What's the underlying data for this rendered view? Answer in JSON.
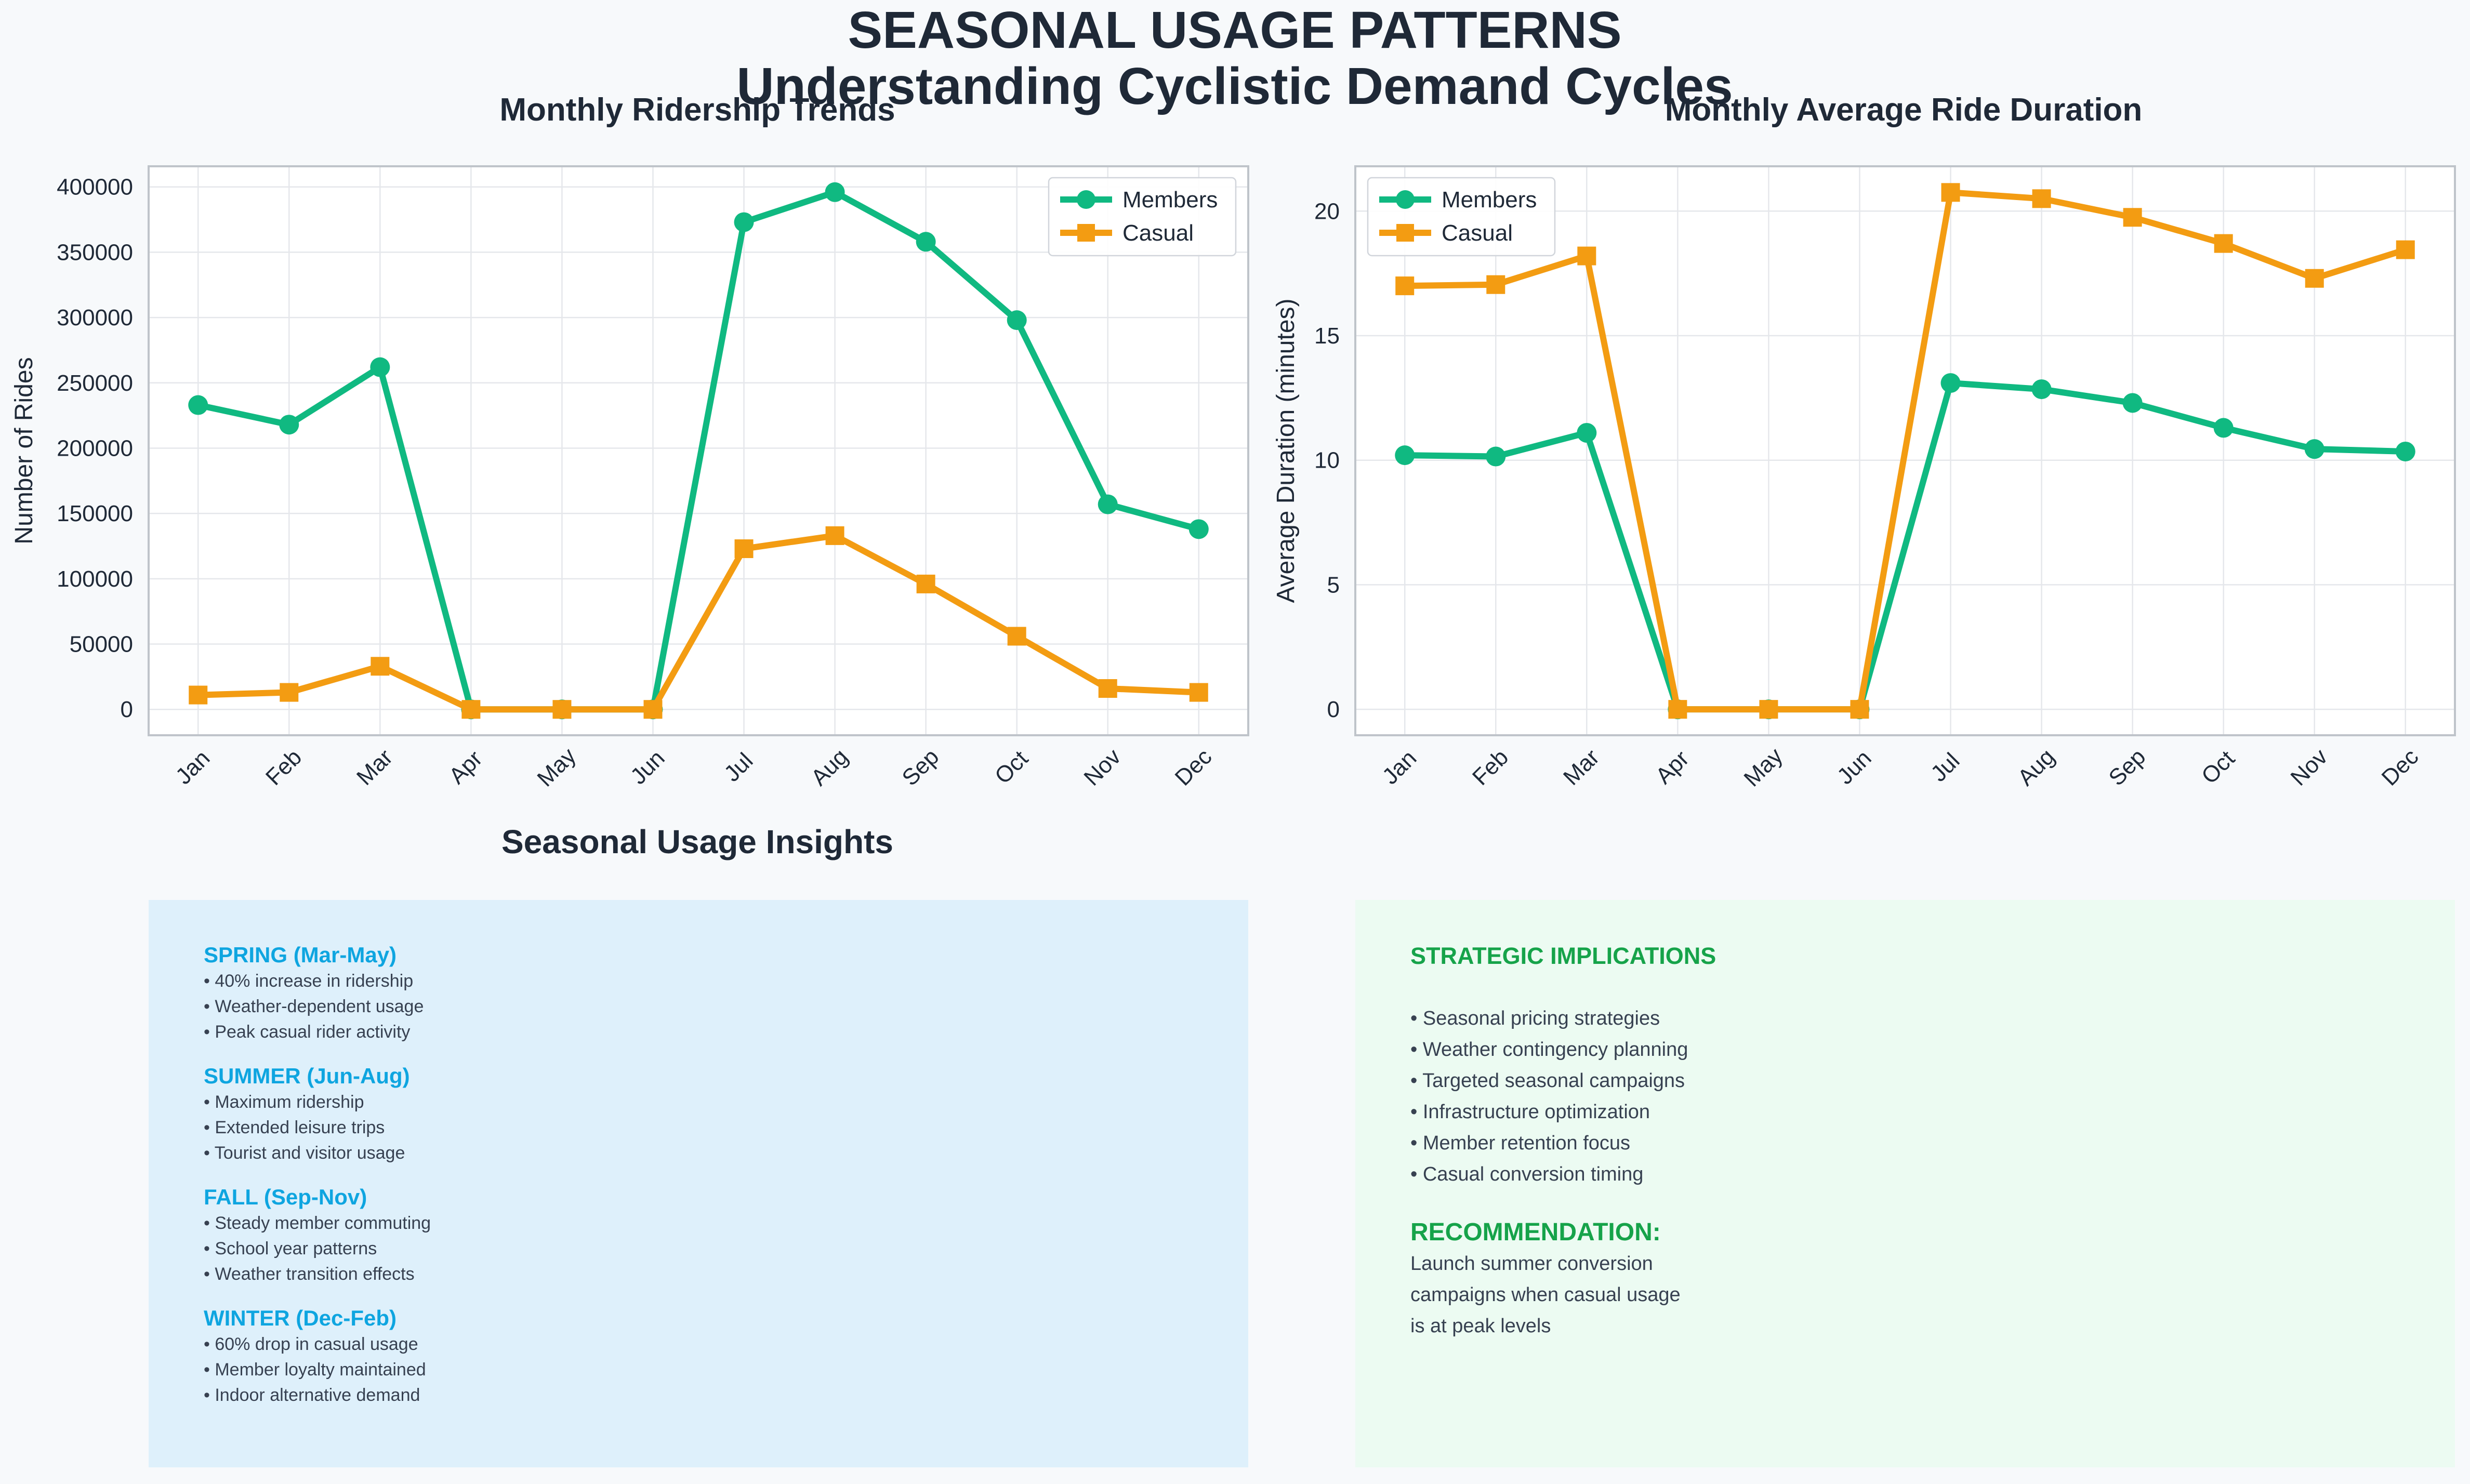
{
  "figure": {
    "title_line1": "SEASONAL USAGE PATTERNS",
    "title_line2": "Understanding Cyclistic Demand Cycles"
  },
  "colors": {
    "members": "#10b981",
    "casual": "#f39c12",
    "title": "#1f2937",
    "spring_summer_fall_winter_heading": "#0ea5e0",
    "strategy_heading": "#16a34a",
    "seasons_box_bg": "#def0fb",
    "strategy_box_bg": "#ecfbf2"
  },
  "chart_data": [
    {
      "type": "line",
      "title": "Monthly Ridership Trends",
      "xlabel": "",
      "ylabel": "Number of Rides",
      "categories": [
        "Jan",
        "Feb",
        "Mar",
        "Apr",
        "May",
        "Jun",
        "Jul",
        "Aug",
        "Sep",
        "Oct",
        "Nov",
        "Dec"
      ],
      "series": [
        {
          "name": "Members",
          "marker": "circle",
          "values": [
            233000,
            218000,
            262000,
            0,
            0,
            0,
            373000,
            396000,
            358000,
            298000,
            157000,
            138000
          ]
        },
        {
          "name": "Casual",
          "marker": "square",
          "values": [
            11000,
            13000,
            33000,
            0,
            0,
            0,
            123000,
            133000,
            96000,
            56000,
            16000,
            13000
          ]
        }
      ],
      "yticks": [
        0,
        50000,
        100000,
        150000,
        200000,
        250000,
        300000,
        350000,
        400000
      ],
      "ylim": [
        -19800,
        415800
      ],
      "grid": true,
      "legend": "top-right"
    },
    {
      "type": "line",
      "title": "Monthly Average Ride Duration",
      "xlabel": "",
      "ylabel": "Average Duration (minutes)",
      "categories": [
        "Jan",
        "Feb",
        "Mar",
        "Apr",
        "May",
        "Jun",
        "Jul",
        "Aug",
        "Sep",
        "Oct",
        "Nov",
        "Dec"
      ],
      "series": [
        {
          "name": "Members",
          "marker": "circle",
          "values": [
            10.2,
            10.15,
            11.1,
            0,
            0,
            0,
            13.1,
            12.85,
            12.3,
            11.3,
            10.45,
            10.35
          ]
        },
        {
          "name": "Casual",
          "marker": "square",
          "values": [
            17.0,
            17.05,
            18.2,
            0,
            0,
            0,
            20.75,
            20.5,
            19.75,
            18.7,
            17.3,
            18.45
          ]
        }
      ],
      "yticks": [
        0,
        5,
        10,
        15,
        20
      ],
      "ylim": [
        -1.04,
        21.8
      ],
      "grid": true,
      "legend": "top-left"
    }
  ],
  "insights": {
    "title": "Seasonal Usage Insights",
    "seasons": [
      {
        "title": "SPRING (Mar-May)",
        "bullets": [
          "• 40% increase in ridership",
          "• Weather-dependent usage",
          "• Peak casual rider activity"
        ]
      },
      {
        "title": "SUMMER (Jun-Aug)",
        "bullets": [
          "• Maximum ridership",
          "• Extended leisure trips",
          "• Tourist and visitor usage"
        ]
      },
      {
        "title": "FALL (Sep-Nov)",
        "bullets": [
          "• Steady member commuting",
          "• School year patterns",
          "• Weather transition effects"
        ]
      },
      {
        "title": "WINTER (Dec-Feb)",
        "bullets": [
          "• 60% drop in casual usage",
          "• Member loyalty maintained",
          "• Indoor alternative demand"
        ]
      }
    ],
    "strategy": {
      "title": "STRATEGIC IMPLICATIONS",
      "bullets": [
        "• Seasonal pricing strategies",
        "• Weather contingency planning",
        "• Targeted seasonal campaigns",
        "• Infrastructure optimization",
        "• Member retention focus",
        "• Casual conversion timing"
      ],
      "recommendation_title": "RECOMMENDATION:",
      "recommendation_lines": [
        "Launch summer conversion",
        "campaigns when casual usage",
        "is at peak levels"
      ]
    }
  }
}
